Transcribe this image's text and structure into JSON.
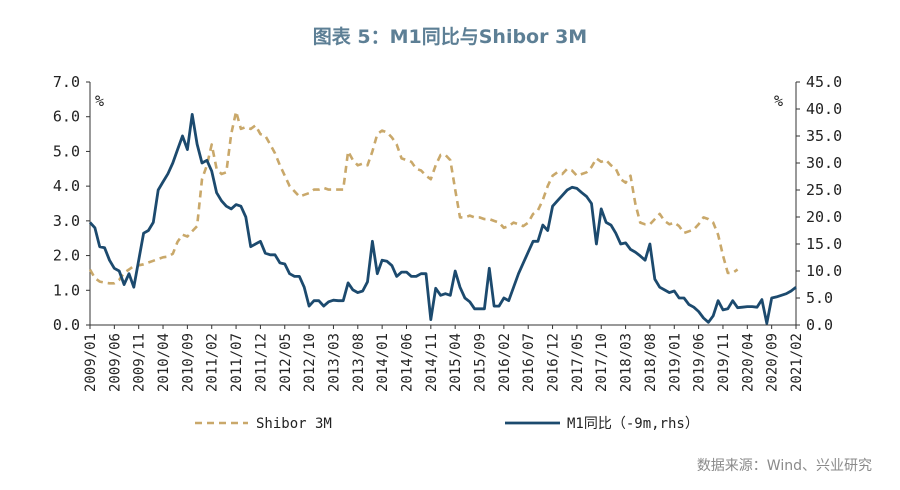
{
  "chart_data": {
    "type": "line",
    "title": "图表 5：M1同比与Shibor 3M",
    "left_unit": "%",
    "right_unit": "%",
    "left_axis": {
      "ylim": [
        0,
        7
      ],
      "ticks": [
        "0.0",
        "1.0",
        "2.0",
        "3.0",
        "4.0",
        "5.0",
        "6.0",
        "7.0"
      ]
    },
    "right_axis": {
      "ylim": [
        0,
        45
      ],
      "ticks": [
        "0.0",
        "5.0",
        "10.0",
        "15.0",
        "20.0",
        "25.0",
        "30.0",
        "35.0",
        "40.0",
        "45.0"
      ]
    },
    "x_range": [
      0,
      145
    ],
    "x_tick_labels": [
      {
        "label": "2009/01",
        "i": 0
      },
      {
        "label": "2009/06",
        "i": 5
      },
      {
        "label": "2009/11",
        "i": 10
      },
      {
        "label": "2010/04",
        "i": 15
      },
      {
        "label": "2010/09",
        "i": 20
      },
      {
        "label": "2011/02",
        "i": 25
      },
      {
        "label": "2011/07",
        "i": 30
      },
      {
        "label": "2011/12",
        "i": 35
      },
      {
        "label": "2012/05",
        "i": 40
      },
      {
        "label": "2012/10",
        "i": 45
      },
      {
        "label": "2013/03",
        "i": 50
      },
      {
        "label": "2013/08",
        "i": 55
      },
      {
        "label": "2014/01",
        "i": 60
      },
      {
        "label": "2014/06",
        "i": 65
      },
      {
        "label": "2014/11",
        "i": 70
      },
      {
        "label": "2015/04",
        "i": 75
      },
      {
        "label": "2015/09",
        "i": 80
      },
      {
        "label": "2016/02",
        "i": 85
      },
      {
        "label": "2016/07",
        "i": 90
      },
      {
        "label": "2016/12",
        "i": 95
      },
      {
        "label": "2017/05",
        "i": 100
      },
      {
        "label": "2017/10",
        "i": 105
      },
      {
        "label": "2018/03",
        "i": 110
      },
      {
        "label": "2018/08",
        "i": 115
      },
      {
        "label": "2019/01",
        "i": 120
      },
      {
        "label": "2019/06",
        "i": 125
      },
      {
        "label": "2019/11",
        "i": 130
      },
      {
        "label": "2020/04",
        "i": 135
      },
      {
        "label": "2020/09",
        "i": 140
      },
      {
        "label": "2021/02",
        "i": 145
      }
    ],
    "series": [
      {
        "name": "Shibor 3M",
        "axis": "left",
        "color": "#c9a86a",
        "style": "dashed",
        "points": [
          [
            0,
            1.6
          ],
          [
            1,
            1.35
          ],
          [
            2,
            1.25
          ],
          [
            3,
            1.22
          ],
          [
            4,
            1.2
          ],
          [
            5,
            1.2
          ],
          [
            6,
            1.3
          ],
          [
            7,
            1.5
          ],
          [
            8,
            1.6
          ],
          [
            9,
            1.7
          ],
          [
            10,
            1.72
          ],
          [
            11,
            1.75
          ],
          [
            12,
            1.8
          ],
          [
            13,
            1.85
          ],
          [
            14,
            1.9
          ],
          [
            15,
            1.95
          ],
          [
            16,
            1.97
          ],
          [
            17,
            2.05
          ],
          [
            18,
            2.4
          ],
          [
            19,
            2.6
          ],
          [
            20,
            2.55
          ],
          [
            21,
            2.7
          ],
          [
            22,
            2.85
          ],
          [
            23,
            4.2
          ],
          [
            24,
            4.6
          ],
          [
            25,
            5.2
          ],
          [
            26,
            4.5
          ],
          [
            27,
            4.35
          ],
          [
            28,
            4.4
          ],
          [
            29,
            5.5
          ],
          [
            30,
            6.15
          ],
          [
            31,
            5.65
          ],
          [
            32,
            5.7
          ],
          [
            33,
            5.65
          ],
          [
            34,
            5.75
          ],
          [
            35,
            5.5
          ],
          [
            36,
            5.45
          ],
          [
            37,
            5.2
          ],
          [
            38,
            4.95
          ],
          [
            39,
            4.6
          ],
          [
            40,
            4.3
          ],
          [
            41,
            4.0
          ],
          [
            42,
            3.85
          ],
          [
            43,
            3.7
          ],
          [
            44,
            3.75
          ],
          [
            45,
            3.8
          ],
          [
            46,
            3.9
          ],
          [
            47,
            3.9
          ],
          [
            48,
            3.95
          ],
          [
            49,
            3.9
          ],
          [
            50,
            3.9
          ],
          [
            51,
            3.9
          ],
          [
            52,
            3.9
          ],
          [
            53,
            5.0
          ],
          [
            54,
            4.75
          ],
          [
            55,
            4.6
          ],
          [
            56,
            4.65
          ],
          [
            57,
            4.6
          ],
          [
            58,
            5.0
          ],
          [
            59,
            5.5
          ],
          [
            60,
            5.6
          ],
          [
            61,
            5.55
          ],
          [
            62,
            5.4
          ],
          [
            63,
            5.2
          ],
          [
            64,
            4.8
          ],
          [
            65,
            4.75
          ],
          [
            66,
            4.7
          ],
          [
            67,
            4.5
          ],
          [
            68,
            4.45
          ],
          [
            69,
            4.3
          ],
          [
            70,
            4.2
          ],
          [
            71,
            4.6
          ],
          [
            72,
            4.9
          ],
          [
            73,
            4.9
          ],
          [
            74,
            4.75
          ],
          [
            75,
            3.9
          ],
          [
            76,
            3.1
          ],
          [
            77,
            3.1
          ],
          [
            78,
            3.15
          ],
          [
            79,
            3.1
          ],
          [
            80,
            3.1
          ],
          [
            81,
            3.05
          ],
          [
            82,
            3.05
          ],
          [
            83,
            3.0
          ],
          [
            84,
            2.95
          ],
          [
            85,
            2.8
          ],
          [
            86,
            2.85
          ],
          [
            87,
            2.95
          ],
          [
            88,
            2.9
          ],
          [
            89,
            2.85
          ],
          [
            90,
            2.95
          ],
          [
            91,
            3.2
          ],
          [
            92,
            3.3
          ],
          [
            93,
            3.6
          ],
          [
            94,
            4.0
          ],
          [
            95,
            4.3
          ],
          [
            96,
            4.4
          ],
          [
            97,
            4.35
          ],
          [
            98,
            4.5
          ],
          [
            99,
            4.45
          ],
          [
            100,
            4.3
          ],
          [
            101,
            4.35
          ],
          [
            102,
            4.4
          ],
          [
            103,
            4.55
          ],
          [
            104,
            4.8
          ],
          [
            105,
            4.7
          ],
          [
            106,
            4.75
          ],
          [
            107,
            4.6
          ],
          [
            108,
            4.5
          ],
          [
            109,
            4.2
          ],
          [
            110,
            4.1
          ],
          [
            111,
            4.3
          ],
          [
            112,
            3.5
          ],
          [
            113,
            2.95
          ],
          [
            114,
            2.9
          ],
          [
            115,
            2.9
          ],
          [
            116,
            3.05
          ],
          [
            117,
            3.2
          ],
          [
            118,
            3.0
          ],
          [
            119,
            2.9
          ],
          [
            120,
            2.95
          ],
          [
            121,
            2.85
          ],
          [
            122,
            2.65
          ],
          [
            123,
            2.7
          ],
          [
            124,
            2.75
          ],
          [
            125,
            2.9
          ],
          [
            126,
            3.1
          ],
          [
            127,
            3.05
          ],
          [
            128,
            2.95
          ],
          [
            129,
            2.6
          ],
          [
            130,
            2.0
          ],
          [
            131,
            1.5
          ],
          [
            132,
            1.5
          ],
          [
            133,
            1.6
          ]
        ]
      },
      {
        "name": "M1同比（-9m,rhs）",
        "axis": "right",
        "color": "#1c4a6e",
        "style": "solid",
        "points": [
          [
            0,
            19.0
          ],
          [
            1,
            18.0
          ],
          [
            2,
            14.5
          ],
          [
            3,
            14.3
          ],
          [
            4,
            12.0
          ],
          [
            5,
            10.5
          ],
          [
            6,
            10.0
          ],
          [
            7,
            7.5
          ],
          [
            8,
            9.5
          ],
          [
            9,
            7.0
          ],
          [
            10,
            12.0
          ],
          [
            11,
            17.0
          ],
          [
            12,
            17.5
          ],
          [
            13,
            19.0
          ],
          [
            14,
            25.0
          ],
          [
            15,
            26.5
          ],
          [
            16,
            28.0
          ],
          [
            17,
            30.0
          ],
          [
            18,
            32.5
          ],
          [
            19,
            35.0
          ],
          [
            20,
            32.5
          ],
          [
            21,
            39.0
          ],
          [
            22,
            33.5
          ],
          [
            23,
            30.0
          ],
          [
            24,
            30.5
          ],
          [
            25,
            28.5
          ],
          [
            26,
            24.5
          ],
          [
            27,
            23.0
          ],
          [
            28,
            22.0
          ],
          [
            29,
            21.5
          ],
          [
            30,
            22.3
          ],
          [
            31,
            22.0
          ],
          [
            32,
            20.0
          ],
          [
            33,
            14.5
          ],
          [
            34,
            15.0
          ],
          [
            35,
            15.5
          ],
          [
            36,
            13.3
          ],
          [
            37,
            13.0
          ],
          [
            38,
            13.0
          ],
          [
            39,
            11.5
          ],
          [
            40,
            11.3
          ],
          [
            41,
            9.5
          ],
          [
            42,
            9.0
          ],
          [
            43,
            9.0
          ],
          [
            44,
            7.0
          ],
          [
            45,
            3.5
          ],
          [
            46,
            4.5
          ],
          [
            47,
            4.5
          ],
          [
            48,
            3.5
          ],
          [
            49,
            4.3
          ],
          [
            50,
            4.6
          ],
          [
            51,
            4.5
          ],
          [
            52,
            4.5
          ],
          [
            53,
            7.8
          ],
          [
            54,
            6.5
          ],
          [
            55,
            6.0
          ],
          [
            56,
            6.3
          ],
          [
            57,
            8.0
          ],
          [
            58,
            15.5
          ],
          [
            59,
            9.5
          ],
          [
            60,
            12.0
          ],
          [
            61,
            11.8
          ],
          [
            62,
            11.0
          ],
          [
            63,
            9.0
          ],
          [
            64,
            9.8
          ],
          [
            65,
            9.8
          ],
          [
            66,
            9.0
          ],
          [
            67,
            9.0
          ],
          [
            68,
            9.5
          ],
          [
            69,
            9.5
          ],
          [
            70,
            1.0
          ],
          [
            71,
            6.8
          ],
          [
            72,
            5.5
          ],
          [
            73,
            5.8
          ],
          [
            74,
            5.5
          ],
          [
            75,
            10.0
          ],
          [
            76,
            7.0
          ],
          [
            77,
            5.0
          ],
          [
            78,
            4.3
          ],
          [
            79,
            3.0
          ],
          [
            80,
            3.0
          ],
          [
            81,
            3.0
          ],
          [
            82,
            10.5
          ],
          [
            83,
            3.5
          ],
          [
            84,
            3.5
          ],
          [
            85,
            5.0
          ],
          [
            86,
            4.5
          ],
          [
            87,
            7.0
          ],
          [
            88,
            9.5
          ],
          [
            89,
            11.5
          ],
          [
            90,
            13.5
          ],
          [
            91,
            15.5
          ],
          [
            92,
            15.5
          ],
          [
            93,
            18.5
          ],
          [
            94,
            17.5
          ],
          [
            95,
            22.0
          ],
          [
            96,
            23.0
          ],
          [
            97,
            24.0
          ],
          [
            98,
            25.0
          ],
          [
            99,
            25.5
          ],
          [
            100,
            25.3
          ],
          [
            101,
            24.5
          ],
          [
            102,
            23.8
          ],
          [
            103,
            22.5
          ],
          [
            104,
            15.0
          ],
          [
            105,
            21.5
          ],
          [
            106,
            19.0
          ],
          [
            107,
            18.5
          ],
          [
            108,
            17.0
          ],
          [
            109,
            15.0
          ],
          [
            110,
            15.2
          ],
          [
            111,
            14.0
          ],
          [
            112,
            13.5
          ],
          [
            113,
            12.8
          ],
          [
            114,
            12.0
          ],
          [
            115,
            15.0
          ],
          [
            116,
            8.5
          ],
          [
            117,
            7.0
          ],
          [
            118,
            6.5
          ],
          [
            119,
            6.0
          ],
          [
            120,
            6.3
          ],
          [
            121,
            5.0
          ],
          [
            122,
            5.0
          ],
          [
            123,
            3.8
          ],
          [
            124,
            3.3
          ],
          [
            125,
            2.5
          ],
          [
            126,
            1.3
          ],
          [
            127,
            0.5
          ],
          [
            128,
            1.7
          ],
          [
            129,
            4.5
          ],
          [
            130,
            2.8
          ],
          [
            131,
            3.0
          ],
          [
            132,
            4.5
          ],
          [
            133,
            3.2
          ],
          [
            134,
            3.3
          ],
          [
            135,
            3.4
          ],
          [
            136,
            3.4
          ],
          [
            137,
            3.3
          ],
          [
            138,
            4.7
          ],
          [
            139,
            0.3
          ],
          [
            140,
            5.0
          ],
          [
            141,
            5.2
          ],
          [
            142,
            5.5
          ],
          [
            143,
            5.8
          ],
          [
            144,
            6.3
          ],
          [
            145,
            7.0
          ]
        ]
      }
    ],
    "legend": [
      {
        "label": "Shibor 3M",
        "series": 0
      },
      {
        "label": "M1同比（-9m,rhs）",
        "series": 1
      }
    ],
    "legend_position": "bottom",
    "source": "数据来源：Wind、兴业研究"
  }
}
